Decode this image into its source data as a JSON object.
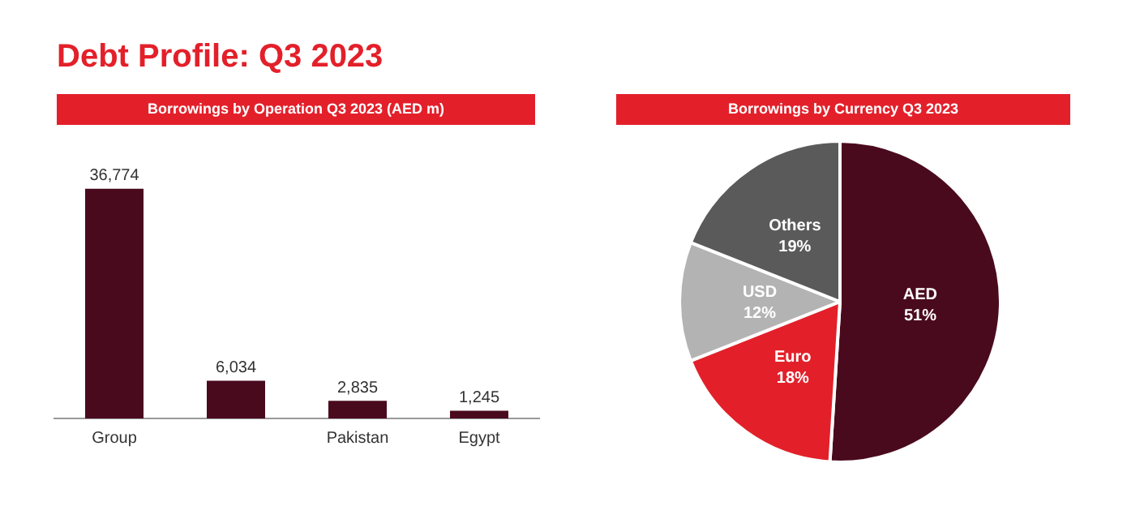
{
  "chart_data": [
    {
      "type": "bar",
      "title": "Debt Profile: Q3 2023",
      "subtitle": "Borrowings by Operation  Q3 2023 (AED m)",
      "categories": [
        "Group",
        null,
        "Pakistan",
        "Egypt"
      ],
      "values": [
        36774,
        6034,
        2835,
        1245
      ],
      "color": "#4a0a1e",
      "value_labels": [
        "36,774",
        "6,034",
        "2,835",
        "1,245"
      ],
      "grid": false,
      "legend": false
    },
    {
      "type": "pie",
      "title": "Borrowings by Currency  Q3 2023",
      "categories": [
        "AED",
        "Euro",
        "USD",
        "Others"
      ],
      "values": [
        51,
        18,
        12,
        19
      ],
      "colors": [
        "#4a0a1e",
        "#e3202a",
        "#b3b3b3",
        "#5a5a5a"
      ],
      "value_labels": [
        "51%",
        "18%",
        "12%",
        "19%"
      ],
      "legend": false
    }
  ]
}
